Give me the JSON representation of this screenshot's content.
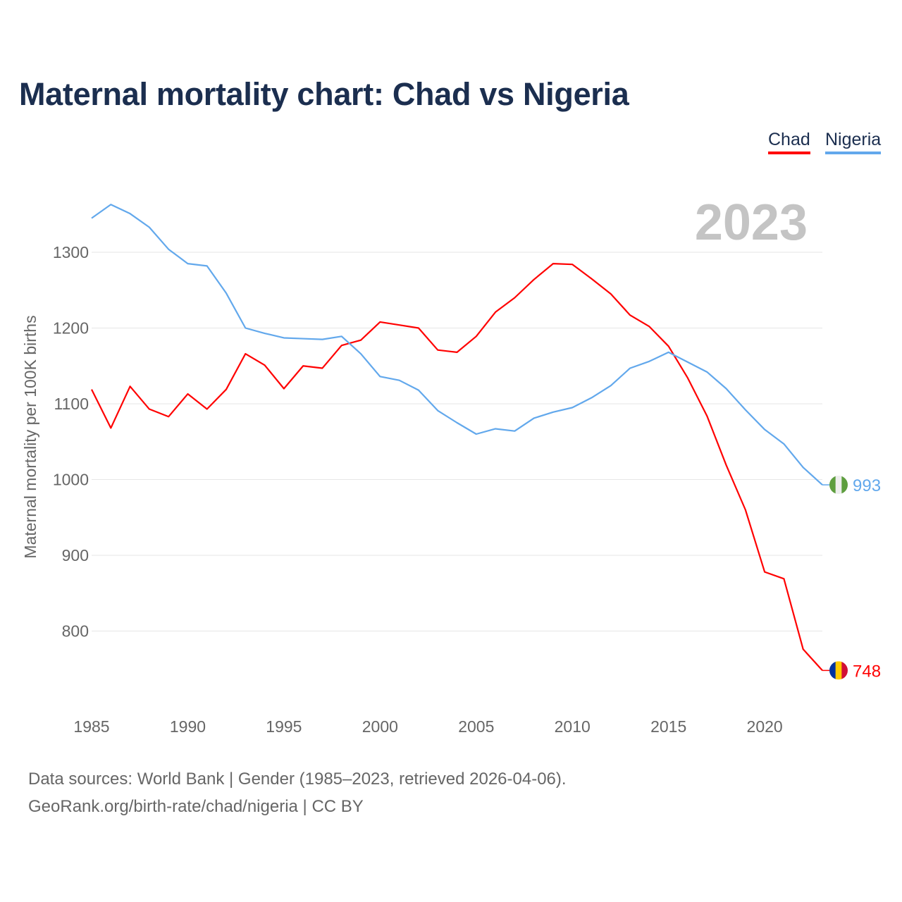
{
  "chart_data": {
    "type": "line",
    "title": "Maternal mortality chart: Chad vs Nigeria",
    "ylabel": "Maternal mortality per 100K births",
    "xlabel": "",
    "year_label": "2023",
    "ylim": [
      700,
      1380
    ],
    "xlim": [
      1985,
      2023
    ],
    "yticks": [
      800,
      900,
      1000,
      1100,
      1200,
      1300
    ],
    "xticks": [
      1985,
      1990,
      1995,
      2000,
      2005,
      2010,
      2015,
      2020
    ],
    "grid": true,
    "legend_position": "top-right",
    "x": [
      1985,
      1986,
      1987,
      1988,
      1989,
      1990,
      1991,
      1992,
      1993,
      1994,
      1995,
      1996,
      1997,
      1998,
      1999,
      2000,
      2001,
      2002,
      2003,
      2004,
      2005,
      2006,
      2007,
      2008,
      2009,
      2010,
      2011,
      2012,
      2013,
      2014,
      2015,
      2016,
      2017,
      2018,
      2019,
      2020,
      2021,
      2022,
      2023
    ],
    "series": [
      {
        "name": "Chad",
        "color": "#ff0000",
        "end_label": "748",
        "values": [
          1119,
          1068,
          1123,
          1093,
          1083,
          1113,
          1093,
          1119,
          1166,
          1151,
          1120,
          1150,
          1147,
          1177,
          1184,
          1208,
          1204,
          1200,
          1171,
          1168,
          1189,
          1221,
          1240,
          1264,
          1285,
          1284,
          1265,
          1245,
          1217,
          1202,
          1176,
          1134,
          1084,
          1019,
          960,
          878,
          869,
          776,
          748
        ]
      },
      {
        "name": "Nigeria",
        "color": "#62a8ec",
        "end_label": "993",
        "values": [
          1345,
          1363,
          1351,
          1333,
          1304,
          1285,
          1282,
          1246,
          1200,
          1193,
          1187,
          1186,
          1185,
          1189,
          1166,
          1136,
          1131,
          1118,
          1091,
          1075,
          1060,
          1067,
          1064,
          1081,
          1089,
          1095,
          1108,
          1124,
          1147,
          1156,
          1168,
          1155,
          1142,
          1120,
          1092,
          1066,
          1047,
          1016,
          993
        ]
      }
    ]
  },
  "footer": {
    "line1": "Data sources: World Bank | Gender (1985–2023, retrieved 2026-04-06).",
    "line2": "GeoRank.org/birth-rate/chad/nigeria | CC BY"
  }
}
